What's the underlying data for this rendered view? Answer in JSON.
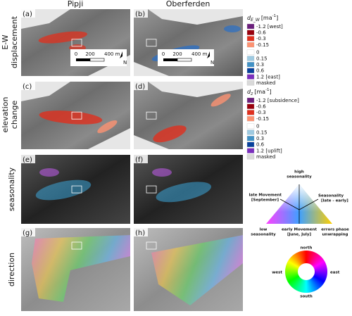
{
  "columns": [
    "Pipji",
    "Oberferden"
  ],
  "rows": [
    [
      "E-W",
      "displacement"
    ],
    [
      "elevation",
      "change"
    ],
    [
      "seasonality"
    ],
    [
      "direction"
    ]
  ],
  "panels": [
    "(a)",
    "(b)",
    "(c)",
    "(d)",
    "(e)",
    "(f)",
    "(g)",
    "(h)"
  ],
  "scale_bar": {
    "labels": [
      "0",
      "200",
      "400 m"
    ],
    "north": "N"
  },
  "legend_ew": {
    "title": {
      "symbol": "d",
      "sub": "E_W",
      "unit": "[ma",
      "exp": "-1",
      "end": "]"
    },
    "labels": [
      "-1.2 [west]",
      "-0.6",
      "-0.3",
      "-0.15",
      "0",
      "0.15",
      "0.3",
      "0.6",
      "1.2 [east]",
      "masked"
    ],
    "colors": [
      "#6b1f7c",
      "#99000d",
      "#e0301e",
      "#fc9272",
      "#ffffff",
      "#9ecae1",
      "#4292c6",
      "#08419c",
      "#7b2fbe",
      "#d9d9d9"
    ]
  },
  "legend_z": {
    "title": {
      "symbol": "d",
      "sub": "z",
      "unit": "[ma",
      "exp": "-1",
      "end": "]"
    },
    "labels": [
      "-1.2 [subsidence]",
      "-0.6",
      "-0.3",
      "-0.15",
      "0",
      "0.15",
      "0.3",
      "0.6",
      "1.2 [uplift]",
      "masked"
    ],
    "colors": [
      "#6b1f7c",
      "#99000d",
      "#e0301e",
      "#fc9272",
      "#ffffff",
      "#9ecae1",
      "#4292c6",
      "#08419c",
      "#7b2fbe",
      "#d9d9d9"
    ]
  },
  "seasonality_legend": {
    "top": [
      "high",
      "seasonality"
    ],
    "left": [
      "late Movement",
      "[September]"
    ],
    "right": [
      "Seasonality",
      "[late - early]"
    ],
    "bottom_left": [
      "low",
      "seasonality"
    ],
    "bottom_mid": [
      "early Movement",
      "[June, July]"
    ],
    "bottom_right": [
      "errors phase",
      "unwrapping"
    ]
  },
  "direction_legend": {
    "north": "north",
    "south": "south",
    "west": "west",
    "east": "east"
  }
}
